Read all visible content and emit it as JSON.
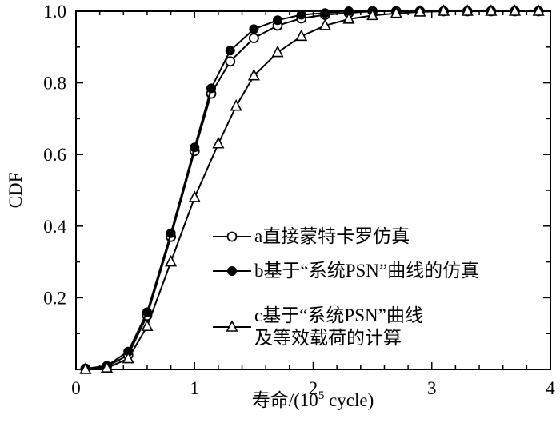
{
  "figure": {
    "background": "#ffffff",
    "axis_color": "#000000",
    "line_color": "#000000"
  },
  "chart_data": {
    "type": "line",
    "title": "",
    "xlabel": "寿命/(10⁵ cycle)",
    "xlabel_parts": {
      "prefix": "寿命/(10",
      "sup": "5",
      "suffix": " cycle)"
    },
    "ylabel": "CDF",
    "xlim": [
      0,
      4
    ],
    "ylim": [
      0,
      1.0
    ],
    "x_major_ticks": [
      0,
      1,
      2,
      3,
      4
    ],
    "x_tick_labels": [
      "0",
      "1",
      "2",
      "3",
      "4"
    ],
    "x_minor_step": 0.2,
    "y_major_ticks": [
      0.2,
      0.4,
      0.6,
      0.8,
      1.0
    ],
    "y_tick_labels": [
      "0.2",
      "0.4",
      "0.6",
      "0.8",
      "1.0"
    ],
    "y_minor_step": 0.1,
    "grid": false,
    "legend_position": "inside lower right",
    "series": [
      {
        "name": "a直接蒙特卡罗仿真",
        "legend_lines": [
          "a直接蒙特卡罗仿真"
        ],
        "marker": "circle-open",
        "color": "#000000",
        "points": [
          [
            0.08,
            0.002
          ],
          [
            0.26,
            0.008
          ],
          [
            0.44,
            0.04
          ],
          [
            0.6,
            0.15
          ],
          [
            0.8,
            0.37
          ],
          [
            1.0,
            0.61
          ],
          [
            1.14,
            0.77
          ],
          [
            1.3,
            0.86
          ],
          [
            1.5,
            0.925
          ],
          [
            1.7,
            0.96
          ],
          [
            1.9,
            0.98
          ],
          [
            2.1,
            0.99
          ],
          [
            2.3,
            0.995
          ],
          [
            2.5,
            1.0
          ],
          [
            2.7,
            1.0
          ],
          [
            2.9,
            1.0
          ],
          [
            3.1,
            1.0
          ],
          [
            3.3,
            1.0
          ],
          [
            3.5,
            1.0
          ],
          [
            3.7,
            1.0
          ],
          [
            3.9,
            1.0
          ]
        ]
      },
      {
        "name": "b基于“系统PSN”曲线的仿真",
        "legend_lines": [
          "b基于“系统PSN”曲线的仿真"
        ],
        "marker": "circle-filled",
        "color": "#000000",
        "points": [
          [
            0.08,
            0.002
          ],
          [
            0.26,
            0.01
          ],
          [
            0.44,
            0.05
          ],
          [
            0.6,
            0.16
          ],
          [
            0.8,
            0.38
          ],
          [
            1.0,
            0.62
          ],
          [
            1.14,
            0.785
          ],
          [
            1.3,
            0.89
          ],
          [
            1.5,
            0.95
          ],
          [
            1.7,
            0.975
          ],
          [
            1.9,
            0.99
          ],
          [
            2.1,
            0.995
          ],
          [
            2.3,
            1.0
          ],
          [
            2.5,
            1.0
          ],
          [
            2.7,
            1.0
          ],
          [
            2.9,
            1.0
          ],
          [
            3.1,
            1.0
          ],
          [
            3.3,
            1.0
          ],
          [
            3.5,
            1.0
          ],
          [
            3.7,
            1.0
          ],
          [
            3.9,
            1.0
          ]
        ]
      },
      {
        "name": "c基于“系统PSN”曲线及等效载荷的计算",
        "legend_lines": [
          "c基于“系统PSN”曲线",
          "及等效载荷的计算"
        ],
        "marker": "triangle-open",
        "color": "#000000",
        "points": [
          [
            0.08,
            0.0
          ],
          [
            0.26,
            0.004
          ],
          [
            0.44,
            0.03
          ],
          [
            0.6,
            0.12
          ],
          [
            0.8,
            0.3
          ],
          [
            1.0,
            0.48
          ],
          [
            1.2,
            0.63
          ],
          [
            1.35,
            0.735
          ],
          [
            1.5,
            0.82
          ],
          [
            1.7,
            0.885
          ],
          [
            1.9,
            0.93
          ],
          [
            2.1,
            0.96
          ],
          [
            2.3,
            0.978
          ],
          [
            2.5,
            0.988
          ],
          [
            2.7,
            0.994
          ],
          [
            2.9,
            0.998
          ],
          [
            3.1,
            1.0
          ],
          [
            3.3,
            1.0
          ],
          [
            3.5,
            1.0
          ],
          [
            3.7,
            1.0
          ],
          [
            3.9,
            1.0
          ]
        ]
      }
    ]
  }
}
